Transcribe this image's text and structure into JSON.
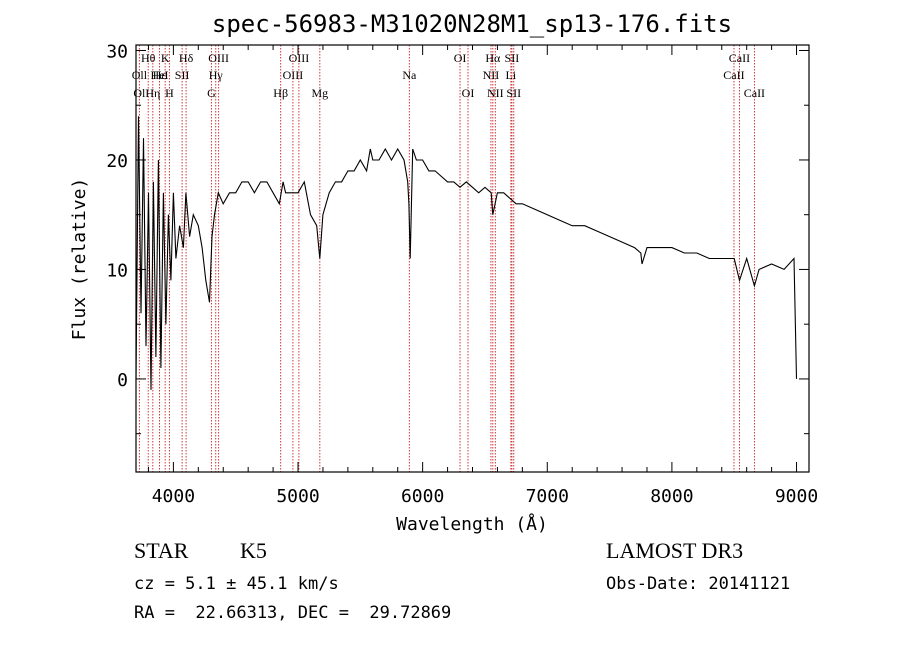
{
  "chart_data": {
    "type": "line",
    "title": "spec-56983-M31020N28M1_sp13-176.fits",
    "xlabel": "Wavelength (Å)",
    "ylabel": "Flux (relative)",
    "xlim": [
      3700,
      9100
    ],
    "ylim": [
      -8.5,
      30.5
    ],
    "x_ticks": [
      4000,
      5000,
      6000,
      7000,
      8000,
      9000
    ],
    "y_ticks": [
      0,
      10,
      20,
      30
    ],
    "series": [
      {
        "x": [
          3700,
          3720,
          3740,
          3760,
          3780,
          3800,
          3820,
          3840,
          3860,
          3880,
          3900,
          3920,
          3940,
          3960,
          3980,
          4000,
          4020,
          4050,
          4080,
          4100,
          4130,
          4160,
          4200,
          4230,
          4260,
          4290,
          4310,
          4330,
          4360,
          4400,
          4450,
          4500,
          4550,
          4600,
          4650,
          4700,
          4750,
          4800,
          4850,
          4880,
          4900,
          4950,
          5000,
          5050,
          5100,
          5150,
          5175,
          5200,
          5250,
          5300,
          5350,
          5400,
          5450,
          5500,
          5550,
          5580,
          5600,
          5650,
          5700,
          5750,
          5800,
          5850,
          5880,
          5890,
          5900,
          5920,
          5950,
          6000,
          6050,
          6100,
          6150,
          6200,
          6250,
          6300,
          6350,
          6400,
          6450,
          6500,
          6550,
          6563,
          6600,
          6650,
          6700,
          6750,
          6800,
          6900,
          7000,
          7100,
          7200,
          7300,
          7400,
          7500,
          7600,
          7700,
          7750,
          7760,
          7800,
          7900,
          8000,
          8100,
          8200,
          8300,
          8400,
          8500,
          8542,
          8600,
          8662,
          8700,
          8800,
          8900,
          8980,
          9000
        ],
        "y": [
          0,
          24,
          6,
          22,
          3,
          17,
          -1,
          18,
          2,
          20,
          1,
          17,
          5,
          15,
          9,
          17,
          11,
          14,
          12,
          17,
          13,
          15,
          14,
          12,
          9,
          7,
          13,
          15,
          17,
          16,
          17,
          17,
          18,
          18,
          17,
          18,
          18,
          17,
          16,
          18,
          17,
          17,
          17,
          18,
          15,
          14,
          11,
          15,
          17,
          18,
          18,
          19,
          19,
          20,
          19,
          21,
          20,
          20,
          21,
          20,
          21,
          20,
          18,
          16,
          11,
          21,
          20,
          20,
          19,
          19,
          18.5,
          18,
          18,
          17.5,
          18,
          17.5,
          17,
          17.5,
          17,
          15,
          17,
          17,
          16.5,
          16,
          16,
          15.5,
          15,
          14.5,
          14,
          14,
          13.5,
          13,
          12.5,
          12,
          11.5,
          10.5,
          12,
          12,
          12,
          11.5,
          11.5,
          11,
          11,
          11,
          9,
          11,
          8.5,
          10,
          10.5,
          10,
          11,
          0
        ]
      }
    ],
    "lines": [
      {
        "label": "Hθ",
        "x": 3798,
        "row": 1
      },
      {
        "label": "Oll",
        "x": 3727,
        "row": 2
      },
      {
        "label": "Hε",
        "x": 3889,
        "row": 2
      },
      {
        "label": "Ol",
        "x": 3727,
        "row": 3
      },
      {
        "label": "Hη",
        "x": 3835,
        "row": 3
      },
      {
        "label": "K",
        "x": 3934,
        "row": 1
      },
      {
        "label": "HeI",
        "x": 3889,
        "row": 2
      },
      {
        "label": "H",
        "x": 3968,
        "row": 3
      },
      {
        "label": "Hδ",
        "x": 4102,
        "row": 1
      },
      {
        "label": "SII",
        "x": 4070,
        "row": 2
      },
      {
        "label": "OIII",
        "x": 4363,
        "row": 1
      },
      {
        "label": "Hγ",
        "x": 4340,
        "row": 2
      },
      {
        "label": "G",
        "x": 4305,
        "row": 3
      },
      {
        "label": "OIII",
        "x": 5007,
        "row": 1
      },
      {
        "label": "OIII",
        "x": 4959,
        "row": 2
      },
      {
        "label": "Hβ",
        "x": 4861,
        "row": 3
      },
      {
        "label": "Mg",
        "x": 5175,
        "row": 3
      },
      {
        "label": "Na",
        "x": 5893,
        "row": 2
      },
      {
        "label": "OI",
        "x": 6300,
        "row": 1
      },
      {
        "label": "OI",
        "x": 6364,
        "row": 3
      },
      {
        "label": "Hα",
        "x": 6563,
        "row": 1
      },
      {
        "label": "NII",
        "x": 6548,
        "row": 2
      },
      {
        "label": "NII",
        "x": 6583,
        "row": 3
      },
      {
        "label": "SII",
        "x": 6716,
        "row": 1
      },
      {
        "label": "Li",
        "x": 6708,
        "row": 2
      },
      {
        "label": "SII",
        "x": 6731,
        "row": 3
      },
      {
        "label": "CaII",
        "x": 8542,
        "row": 1
      },
      {
        "label": "CaII",
        "x": 8498,
        "row": 2
      },
      {
        "label": "CaII",
        "x": 8662,
        "row": 3
      }
    ]
  },
  "info": {
    "class": "STAR",
    "subclass": "K5",
    "cz": "cz = 5.1 ± 45.1 km/s",
    "radec": "RA =  22.66313, DEC =  29.72869",
    "survey": "LAMOST DR3",
    "obsdate": "Obs-Date: 20141121"
  },
  "colors": {
    "line_marker": "#cc2222",
    "spectrum": "#000000"
  }
}
